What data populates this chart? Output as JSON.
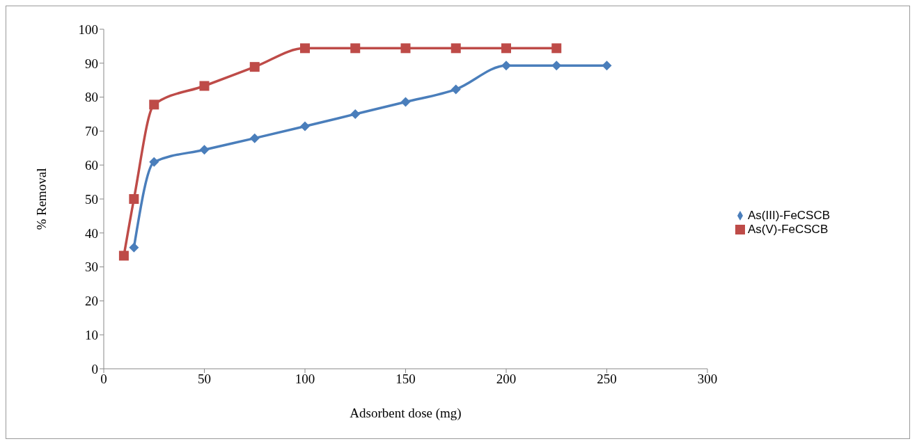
{
  "chart_data": {
    "type": "line",
    "xlabel": "Adsorbent dose (mg)",
    "ylabel": "% Removal",
    "xlim": [
      0,
      300
    ],
    "xticks": [
      0,
      50,
      100,
      150,
      200,
      250,
      300
    ],
    "ylim": [
      0,
      100
    ],
    "yticks": [
      0,
      10,
      20,
      30,
      40,
      50,
      60,
      70,
      80,
      90,
      100
    ],
    "grid": false,
    "legend": "right",
    "line_style": "solid",
    "series": [
      {
        "name": "As(III)-FeCSCB",
        "color": "#4a7ebb",
        "marker": "diamond",
        "x": [
          15,
          25,
          50,
          75,
          100,
          125,
          150,
          175,
          200,
          225,
          250
        ],
        "values": [
          35.7,
          60.9,
          64.5,
          67.9,
          71.4,
          75.0,
          78.6,
          82.3,
          89.3,
          89.3,
          89.3
        ]
      },
      {
        "name": "As(V)-FeCSCB",
        "color": "#be4b48",
        "marker": "square",
        "x": [
          10,
          15,
          25,
          50,
          75,
          100,
          125,
          150,
          175,
          200,
          225
        ],
        "values": [
          33.3,
          50,
          77.8,
          83.3,
          88.9,
          94.4,
          94.4,
          94.4,
          94.4,
          94.4,
          94.4
        ]
      }
    ]
  }
}
